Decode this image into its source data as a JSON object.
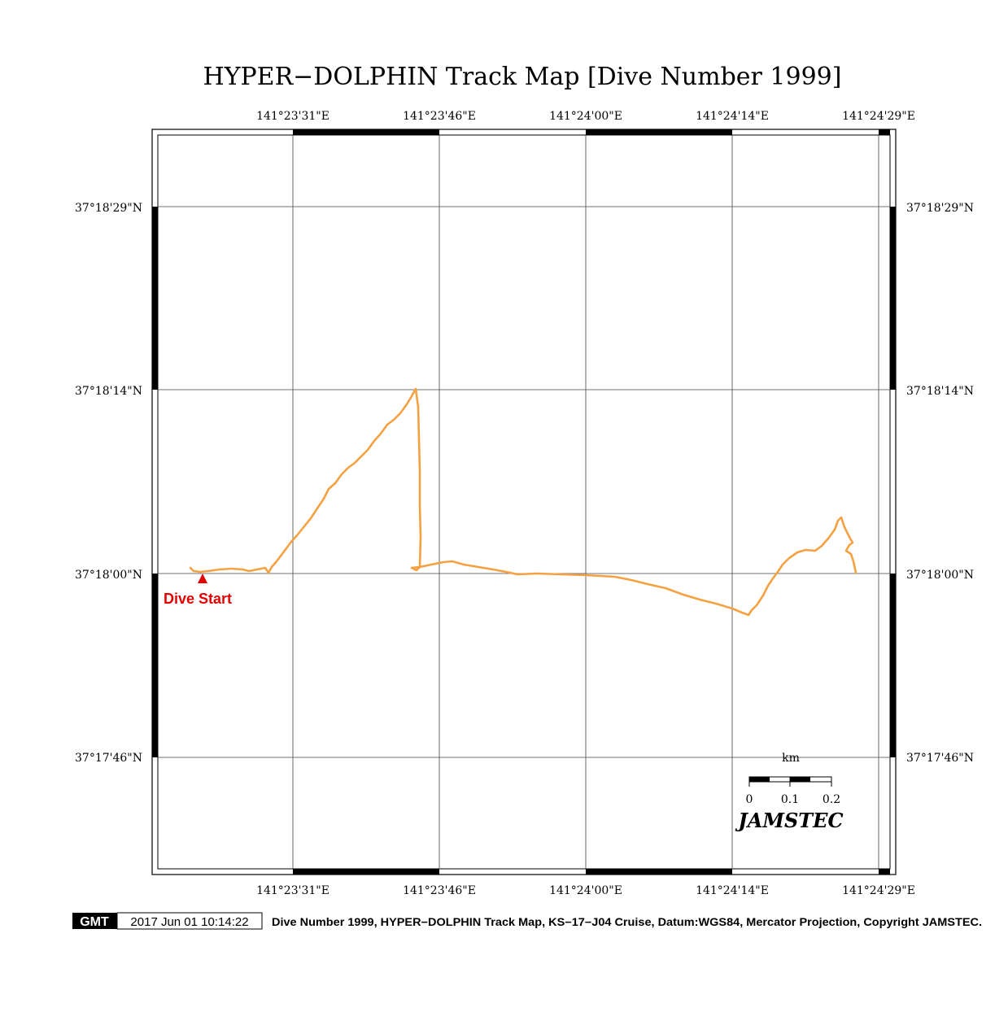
{
  "title": "HYPER−DOLPHIN Track Map [Dive Number 1999]",
  "map": {
    "lon_ticks": [
      "141°23'31\"E",
      "141°23'46\"E",
      "141°24'00\"E",
      "141°24'14\"E",
      "141°24'29\"E"
    ],
    "lat_ticks": [
      "37°18'29\"N",
      "37°18'14\"N",
      "37°18'00\"N",
      "37°17'46\"N"
    ],
    "track_color": "#f5a142",
    "track_label": "Dive Start",
    "start_marker_color": "#e30000",
    "scale_bar": {
      "unit": "km",
      "labels": [
        "0",
        "0.1",
        "0.2"
      ]
    },
    "logo_text": "JAMSTEC"
  },
  "footer": {
    "gmt_logo": "GMT",
    "timestamp": "2017 Jun 01 10:14:22",
    "caption": "Dive Number 1999, HYPER−DOLPHIN Track Map, KS−17−J04 Cruise, Datum:WGS84, Mercator Projection, Copyright JAMSTEC."
  }
}
